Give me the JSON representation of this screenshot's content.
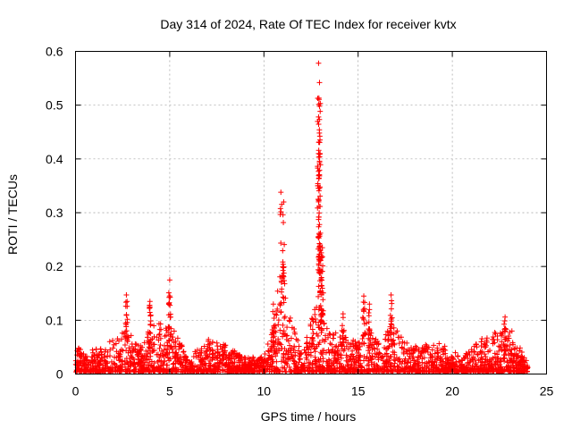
{
  "chart_data": {
    "type": "scatter",
    "title": "Day 314 of 2024, Rate Of TEC Index for receiver kvtx",
    "xlabel": "GPS time / hours",
    "ylabel": "ROTI / TECUs",
    "xlim": [
      0,
      25
    ],
    "ylim": [
      0,
      0.6
    ],
    "x_ticks": [
      "0",
      "5",
      "10",
      "15",
      "20",
      "25"
    ],
    "y_ticks": [
      "0",
      "0.1",
      "0.2",
      "0.3",
      "0.4",
      "0.5",
      "0.6"
    ],
    "grid": true,
    "marker": "+",
    "series": [
      {
        "name": "ROTI",
        "color": "#ff0000",
        "peaks": [
          {
            "x": 2.7,
            "y": 0.147
          },
          {
            "x": 3.95,
            "y": 0.135
          },
          {
            "x": 5.0,
            "y": 0.175
          },
          {
            "x": 10.5,
            "y": 0.13
          },
          {
            "x": 10.9,
            "y": 0.338
          },
          {
            "x": 11.05,
            "y": 0.32
          },
          {
            "x": 12.9,
            "y": 0.578
          },
          {
            "x": 12.95,
            "y": 0.542
          },
          {
            "x": 12.95,
            "y": 0.498
          },
          {
            "x": 12.9,
            "y": 0.478
          },
          {
            "x": 12.9,
            "y": 0.41
          },
          {
            "x": 12.95,
            "y": 0.393
          },
          {
            "x": 13.0,
            "y": 0.262
          },
          {
            "x": 13.1,
            "y": 0.235
          },
          {
            "x": 13.05,
            "y": 0.22
          },
          {
            "x": 14.2,
            "y": 0.112
          },
          {
            "x": 15.3,
            "y": 0.145
          },
          {
            "x": 15.6,
            "y": 0.13
          },
          {
            "x": 16.75,
            "y": 0.147
          },
          {
            "x": 22.8,
            "y": 0.106
          }
        ],
        "envelope": [
          {
            "x": 0.0,
            "y": 0.05
          },
          {
            "x": 1.0,
            "y": 0.045
          },
          {
            "x": 1.75,
            "y": 0.06
          },
          {
            "x": 2.7,
            "y": 0.09
          },
          {
            "x": 3.5,
            "y": 0.05
          },
          {
            "x": 3.95,
            "y": 0.09
          },
          {
            "x": 5.0,
            "y": 0.1
          },
          {
            "x": 6.0,
            "y": 0.03
          },
          {
            "x": 7.0,
            "y": 0.065
          },
          {
            "x": 8.0,
            "y": 0.055
          },
          {
            "x": 9.0,
            "y": 0.03
          },
          {
            "x": 10.0,
            "y": 0.035
          },
          {
            "x": 10.5,
            "y": 0.09
          },
          {
            "x": 10.9,
            "y": 0.23
          },
          {
            "x": 11.3,
            "y": 0.12
          },
          {
            "x": 12.0,
            "y": 0.04
          },
          {
            "x": 12.9,
            "y": 0.15
          },
          {
            "x": 13.5,
            "y": 0.075
          },
          {
            "x": 14.2,
            "y": 0.08
          },
          {
            "x": 15.0,
            "y": 0.06
          },
          {
            "x": 15.5,
            "y": 0.1
          },
          {
            "x": 16.0,
            "y": 0.06
          },
          {
            "x": 16.75,
            "y": 0.1
          },
          {
            "x": 17.5,
            "y": 0.06
          },
          {
            "x": 18.5,
            "y": 0.055
          },
          {
            "x": 19.5,
            "y": 0.06
          },
          {
            "x": 20.5,
            "y": 0.03
          },
          {
            "x": 21.5,
            "y": 0.065
          },
          {
            "x": 22.5,
            "y": 0.085
          },
          {
            "x": 23.0,
            "y": 0.09
          },
          {
            "x": 23.5,
            "y": 0.06
          },
          {
            "x": 24.0,
            "y": 0.02
          }
        ]
      }
    ]
  }
}
